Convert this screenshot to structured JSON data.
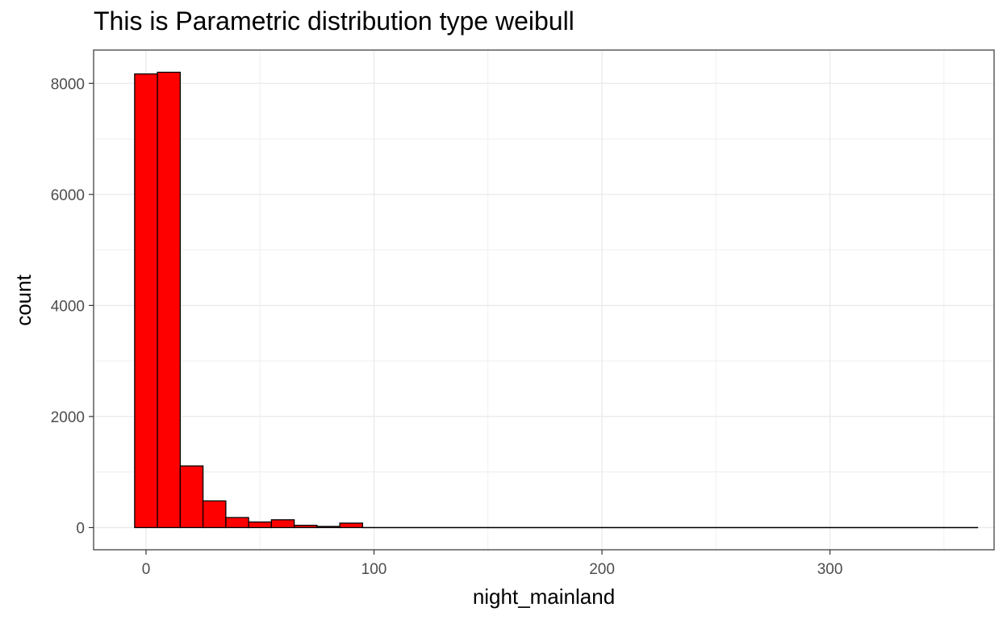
{
  "chart_data": {
    "type": "bar",
    "title": "This is Parametric distribution type weibull",
    "xlabel": "night_mainland",
    "ylabel": "count",
    "xlim": [
      -23,
      372
    ],
    "ylim": [
      -400,
      8600
    ],
    "xticks": [
      0,
      100,
      200,
      300
    ],
    "yticks": [
      0,
      2000,
      4000,
      6000,
      8000
    ],
    "grid": true,
    "bins": [
      {
        "x0": -5,
        "x1": 5,
        "value": 8170
      },
      {
        "x0": 5,
        "x1": 15,
        "value": 8200
      },
      {
        "x0": 15,
        "x1": 25,
        "value": 1110
      },
      {
        "x0": 25,
        "x1": 35,
        "value": 480
      },
      {
        "x0": 35,
        "x1": 45,
        "value": 180
      },
      {
        "x0": 45,
        "x1": 55,
        "value": 100
      },
      {
        "x0": 55,
        "x1": 65,
        "value": 140
      },
      {
        "x0": 65,
        "x1": 75,
        "value": 40
      },
      {
        "x0": 75,
        "x1": 85,
        "value": 20
      },
      {
        "x0": 85,
        "x1": 95,
        "value": 80
      },
      {
        "x0": 95,
        "x1": 365,
        "value": 0
      }
    ],
    "colors": {
      "fill": "#ff0000",
      "stroke": "#000000",
      "grid": "#ebebeb",
      "tick_label": "#4d4d4d",
      "panel_border": "#333333"
    }
  }
}
